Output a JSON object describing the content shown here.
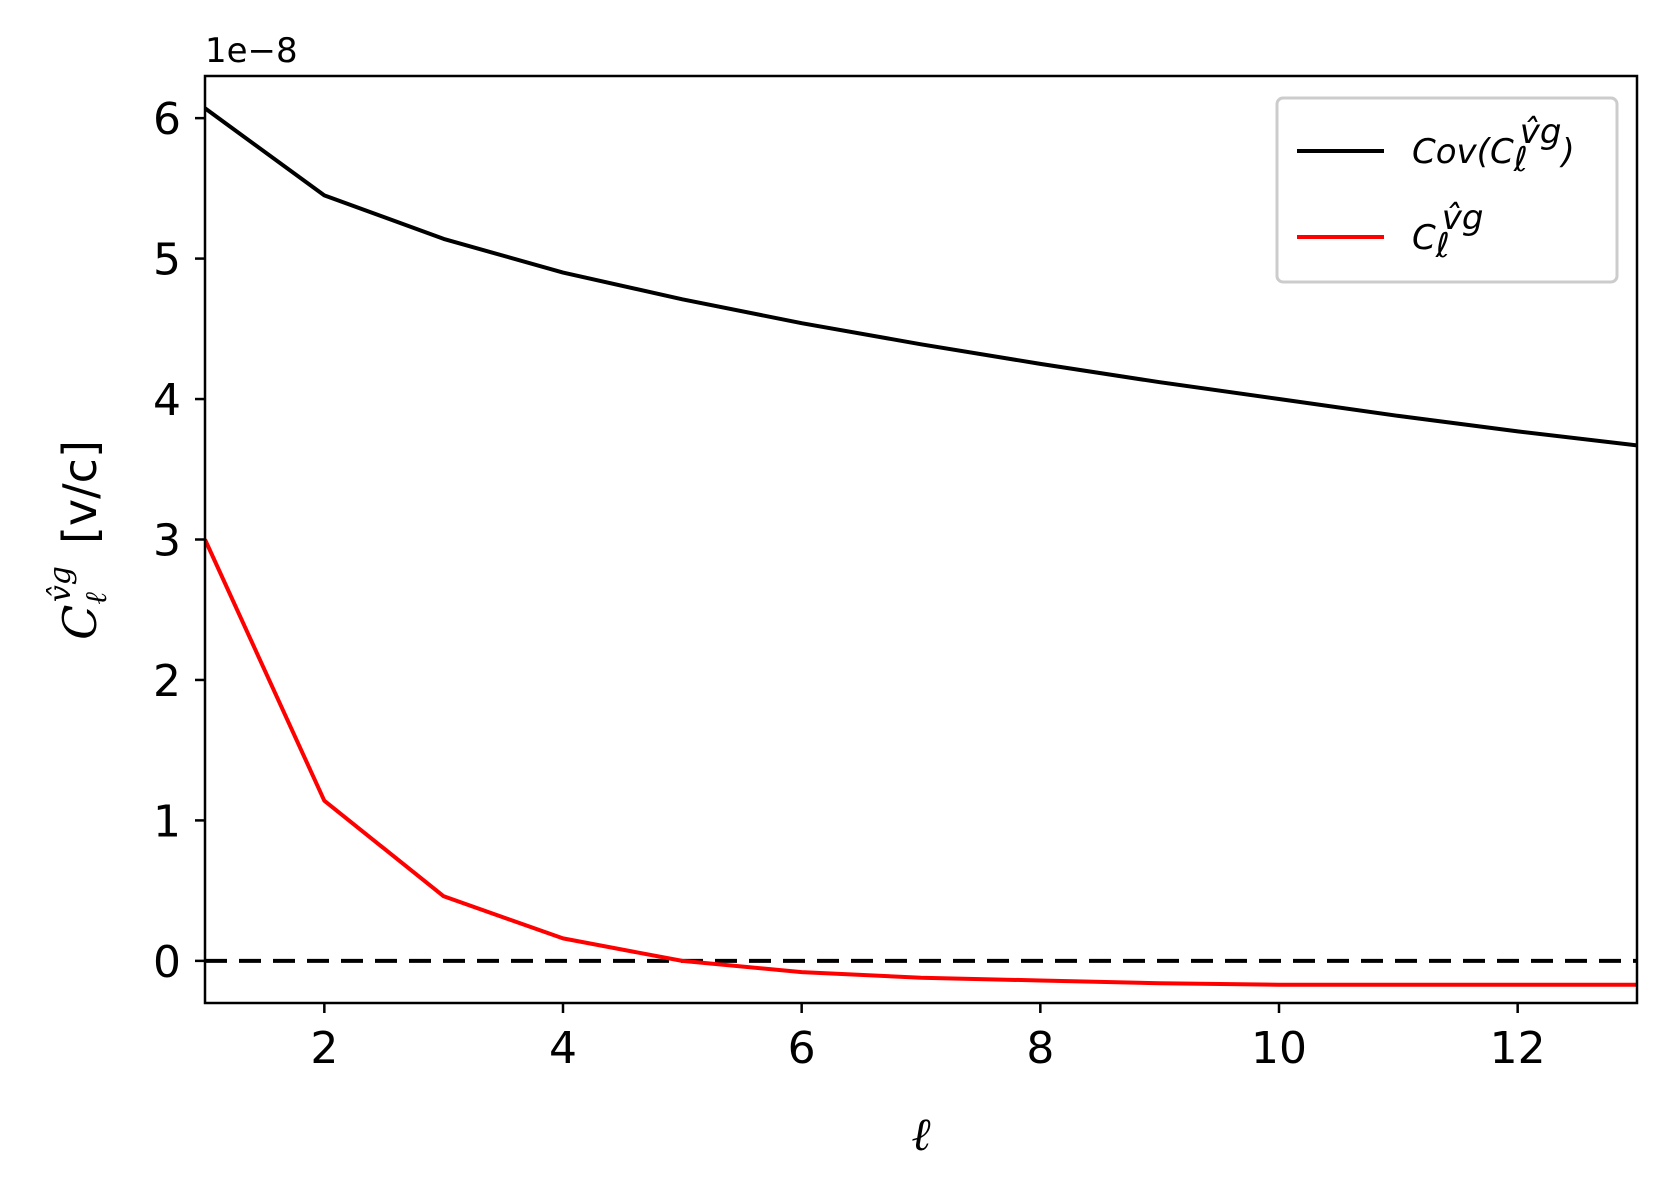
{
  "chart_data": {
    "type": "line",
    "title": "",
    "xlabel": "ℓ",
    "ylabel": {
      "symbol": "C",
      "subscript": "ℓ",
      "superscript": "v̂g",
      "units": "[v/c]"
    },
    "y_offset_label": "1e−8",
    "y_scale": 1e-08,
    "xlim": [
      1,
      13
    ],
    "ylim": [
      -0.3,
      6.3
    ],
    "xticks": [
      2,
      4,
      6,
      8,
      10,
      12
    ],
    "yticks": [
      0,
      1,
      2,
      3,
      4,
      5,
      6
    ],
    "grid": false,
    "legend_placement": "upper-right",
    "reference_line": {
      "y": 0,
      "style": "dashed",
      "color": "#000000"
    },
    "x": [
      1,
      2,
      3,
      4,
      5,
      6,
      7,
      8,
      9,
      10,
      11,
      12,
      13
    ],
    "series": [
      {
        "name": "Cov(C_ℓ^v̂g)",
        "legend": {
          "prefix": "Cov(",
          "symbol": "C",
          "subscript": "ℓ",
          "superscript": "v̂g",
          "suffix": ")"
        },
        "color": "#000000",
        "values": [
          6.07,
          5.45,
          5.14,
          4.9,
          4.71,
          4.54,
          4.39,
          4.25,
          4.12,
          4.0,
          3.88,
          3.77,
          3.67
        ]
      },
      {
        "name": "C_ℓ^v̂g",
        "legend": {
          "prefix": "",
          "symbol": "C",
          "subscript": "ℓ",
          "superscript": "v̂g",
          "suffix": ""
        },
        "color": "#ff0000",
        "values": [
          3.0,
          1.14,
          0.46,
          0.16,
          0.0,
          -0.08,
          -0.12,
          -0.14,
          -0.16,
          -0.17,
          -0.17,
          -0.17,
          -0.17
        ]
      }
    ]
  }
}
